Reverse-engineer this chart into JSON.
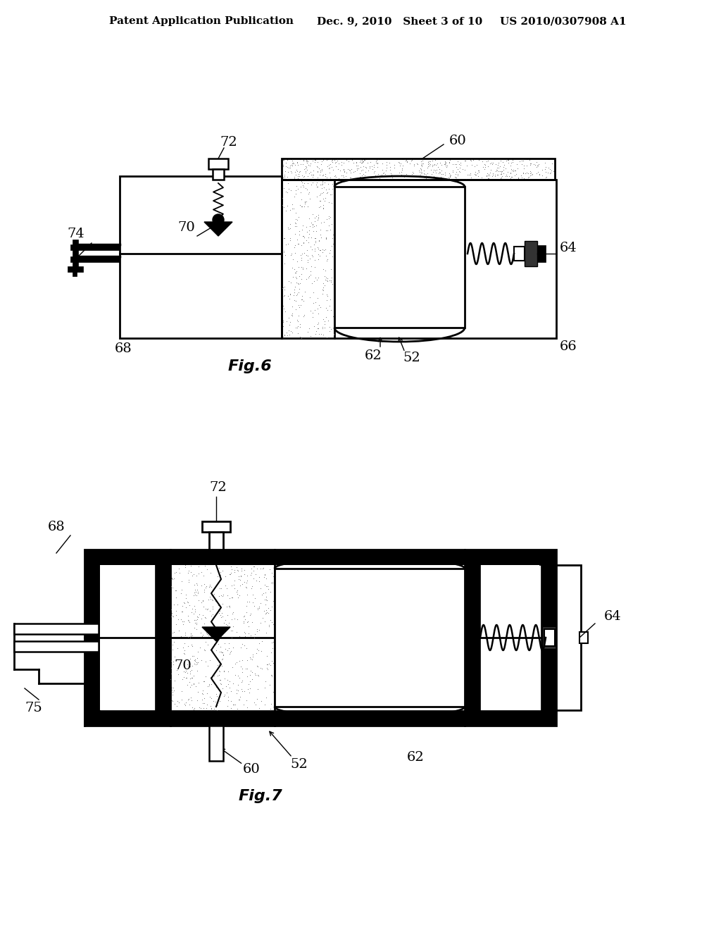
{
  "bg_color": "#ffffff",
  "header_text_left": "Patent Application Publication",
  "header_text_mid": "Dec. 9, 2010   Sheet 3 of 10",
  "header_text_right": "US 2010/0307908 A1",
  "fig6_label": "Fig.6",
  "fig7_label": "Fig.7",
  "black": "#000000",
  "white": "#ffffff",
  "stipple_color": "#888888"
}
